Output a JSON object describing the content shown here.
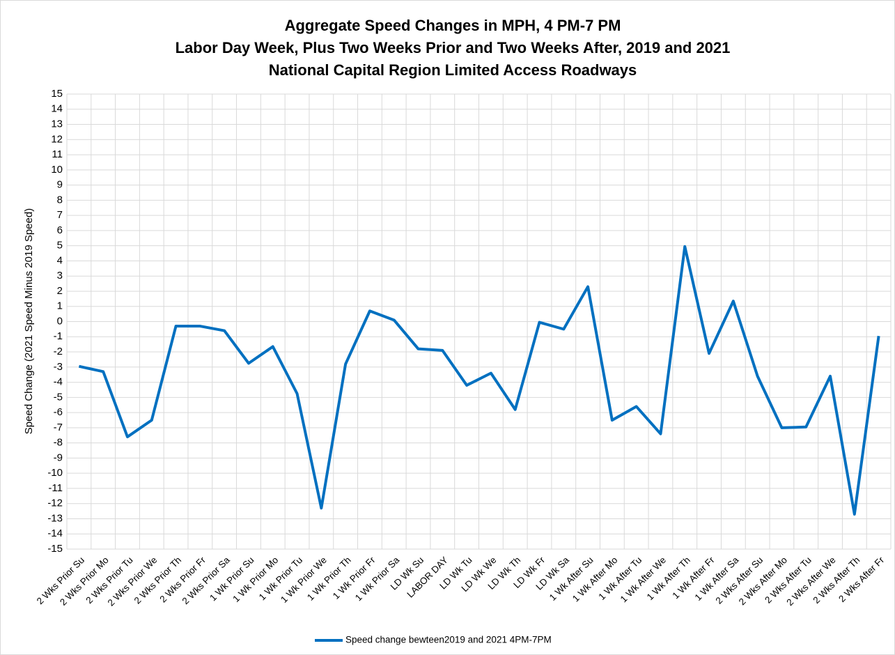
{
  "chart_data": {
    "type": "line",
    "title": [
      "Aggregate Speed Changes in MPH, 4 PM-7 PM",
      "Labor Day Week, Plus Two Weeks Prior and Two Weeks After, 2019 and 2021",
      "National Capital Region Limited Access Roadways"
    ],
    "y_label": "Speed Change (2021 Speed Minus 2019 Speed)",
    "categories": [
      "2 Wks Prior Su",
      "2 Wks Prior Mo",
      "2 Wks Prior Tu",
      "2 Wks Prior We",
      "2 Wks Prior Th",
      "2 Wks Prior Fr",
      "2 Wks Prior Sa",
      "1 Wk Prior Su",
      "1 Wk Prior Mo",
      "1 Wk Prior Tu",
      "1 Wk Prior We",
      "1 Wk Prior Th",
      "1 Wk Prior Fr",
      "1 Wk Prior Sa",
      "LD Wk Su",
      "LABOR DAY",
      "LD Wk Tu",
      "LD Wk We",
      "LD Wk Th",
      "LD Wk Fr",
      "LD Wk Sa",
      "1 Wk After Su",
      "1 Wk After Mo",
      "1 Wk After Tu",
      "1 Wk After We",
      "1 Wk After Th",
      "1 Wk After Fr",
      "1 Wk After Sa",
      "2 Wks After Su",
      "2 Wks After Mo",
      "2 Wks After Tu",
      "2 Wks After We",
      "2 Wks After Th",
      "2 Wks After Fr"
    ],
    "series": [
      {
        "name": "Speed change bewteen2019 and 2021 4PM-7PM",
        "color": "#0070c0",
        "values": [
          -2.95,
          -3.3,
          -7.6,
          -6.5,
          -0.3,
          -0.3,
          -0.6,
          -2.75,
          -1.65,
          -4.75,
          -12.3,
          -2.8,
          0.7,
          0.1,
          -1.8,
          -1.9,
          -4.2,
          -3.4,
          -5.8,
          -0.05,
          -0.5,
          2.3,
          -6.5,
          -5.6,
          -7.4,
          4.95,
          -2.1,
          1.35,
          -3.6,
          -7.0,
          -6.95,
          -3.6,
          -12.7,
          -0.95
        ]
      }
    ],
    "ylim": [
      -15,
      15
    ],
    "yticks": [
      -15,
      -14,
      -13,
      -12,
      -11,
      -10,
      -9,
      -8,
      -7,
      -6,
      -5,
      -4,
      -3,
      -2,
      -1,
      0,
      1,
      2,
      3,
      4,
      5,
      6,
      7,
      8,
      9,
      10,
      11,
      12,
      13,
      14,
      15
    ],
    "grid": true,
    "legend": "bottom"
  }
}
